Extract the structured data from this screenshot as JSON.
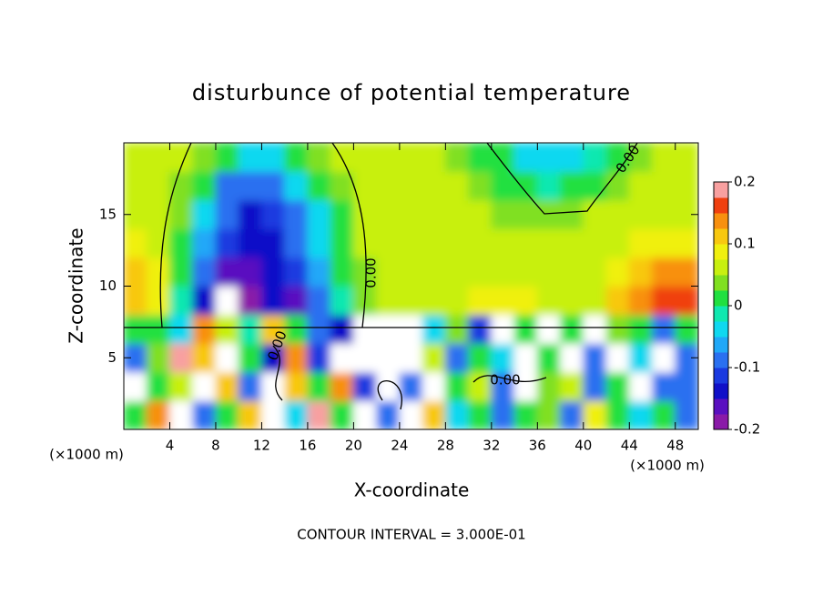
{
  "chart_data": {
    "type": "heatmap",
    "title": "disturbunce of potential temperature",
    "x_label": "X-coordinate",
    "y_label": "Z-coordinate",
    "x_unit": "(×1000 m)",
    "footer": "CONTOUR INTERVAL = 3.000E-01",
    "contour_labels": [
      "0.00",
      "0.00",
      "0.00",
      "0.00"
    ],
    "xlim": [
      0,
      50
    ],
    "ylim": [
      0,
      20
    ],
    "xticks": [
      4,
      8,
      12,
      16,
      20,
      24,
      28,
      32,
      36,
      40,
      44,
      48
    ],
    "yticks": [
      5,
      10,
      15
    ],
    "clim": [
      -0.2,
      0.2
    ],
    "cticks": [
      -0.2,
      -0.1,
      0,
      0.1,
      0.2
    ],
    "colors": [
      "#8a1aa8",
      "#5a10c0",
      "#1010c8",
      "#1a3ae0",
      "#2a70f0",
      "#20a8f8",
      "#10d8f0",
      "#10e8b0",
      "#20e040",
      "#80e020",
      "#c8f010",
      "#f0f010",
      "#f8c810",
      "#f89010",
      "#f04010",
      "#f8a0a0"
    ],
    "x": [
      1,
      3,
      5,
      7,
      9,
      11,
      13,
      15,
      17,
      19,
      21,
      23,
      25,
      27,
      29,
      31,
      33,
      35,
      37,
      39,
      41,
      43,
      45,
      47,
      49
    ],
    "y": [
      1,
      3,
      5,
      7,
      9,
      11,
      13,
      15,
      17,
      19
    ],
    "z": [
      [
        0.0,
        0.15,
        -0.3,
        -0.1,
        0.0,
        0.12,
        -0.3,
        -0.05,
        0.2,
        0.0,
        -0.3,
        -0.1,
        -0.3,
        0.1,
        -0.05,
        0.0,
        -0.1,
        0.0,
        0.04,
        -0.1,
        0.08,
        0.0,
        -0.05,
        0.0,
        -0.1
      ],
      [
        0.25,
        0.0,
        0.06,
        -0.3,
        0.12,
        -0.1,
        -0.3,
        0.12,
        0.02,
        0.15,
        -0.12,
        -0.3,
        -0.1,
        -0.3,
        0.02,
        0.06,
        -0.1,
        -0.3,
        0.03,
        0.06,
        -0.1,
        0.02,
        -0.3,
        -0.08,
        -0.1
      ],
      [
        -0.1,
        0.04,
        0.18,
        0.1,
        -0.3,
        0.0,
        -0.15,
        0.15,
        -0.12,
        -0.3,
        -0.3,
        -0.3,
        -0.3,
        0.05,
        -0.1,
        0.02,
        -0.05,
        -0.3,
        0.02,
        -0.3,
        -0.1,
        -0.3,
        -0.05,
        -0.3,
        -0.1
      ],
      [
        0.02,
        0.0,
        -0.05,
        0.15,
        0.05,
        -0.02,
        0.12,
        0.0,
        -0.1,
        -0.15,
        -0.3,
        -0.3,
        -0.3,
        -0.05,
        0.04,
        -0.12,
        -0.3,
        0.02,
        -0.3,
        0.0,
        -0.3,
        0.04,
        0.0,
        -0.1,
        0.0
      ],
      [
        0.12,
        0.08,
        -0.02,
        -0.14,
        -0.25,
        -0.18,
        -0.14,
        -0.16,
        -0.1,
        -0.02,
        0.03,
        0.05,
        0.05,
        0.05,
        0.06,
        0.08,
        0.09,
        0.08,
        0.06,
        0.06,
        0.07,
        0.1,
        0.14,
        0.17,
        0.16
      ],
      [
        0.11,
        0.08,
        0.0,
        -0.1,
        -0.16,
        -0.17,
        -0.15,
        -0.12,
        -0.07,
        0.0,
        0.04,
        0.05,
        0.05,
        0.06,
        0.06,
        0.06,
        0.06,
        0.06,
        0.06,
        0.06,
        0.07,
        0.09,
        0.12,
        0.14,
        0.13
      ],
      [
        0.09,
        0.07,
        0.02,
        -0.06,
        -0.12,
        -0.15,
        -0.13,
        -0.1,
        -0.05,
        0.01,
        0.05,
        0.06,
        0.06,
        0.06,
        0.06,
        0.06,
        0.05,
        0.05,
        0.05,
        0.05,
        0.06,
        0.07,
        0.08,
        0.09,
        0.09
      ],
      [
        0.07,
        0.06,
        0.03,
        -0.03,
        -0.1,
        -0.13,
        -0.12,
        -0.08,
        -0.03,
        0.02,
        0.05,
        0.06,
        0.06,
        0.06,
        0.06,
        0.05,
        0.04,
        0.03,
        0.03,
        0.04,
        0.05,
        0.06,
        0.06,
        0.07,
        0.07
      ],
      [
        0.06,
        0.06,
        0.04,
        0.0,
        -0.08,
        -0.1,
        -0.09,
        -0.04,
        0.0,
        0.03,
        0.05,
        0.06,
        0.06,
        0.06,
        0.05,
        0.04,
        0.02,
        0.0,
        -0.01,
        0.0,
        0.02,
        0.04,
        0.05,
        0.06,
        0.06
      ],
      [
        0.06,
        0.06,
        0.05,
        0.03,
        0.0,
        -0.04,
        -0.04,
        0.0,
        0.03,
        0.05,
        0.05,
        0.06,
        0.06,
        0.05,
        0.04,
        0.02,
        0.0,
        -0.04,
        -0.05,
        -0.04,
        -0.02,
        0.01,
        0.04,
        0.05,
        0.06
      ]
    ]
  }
}
